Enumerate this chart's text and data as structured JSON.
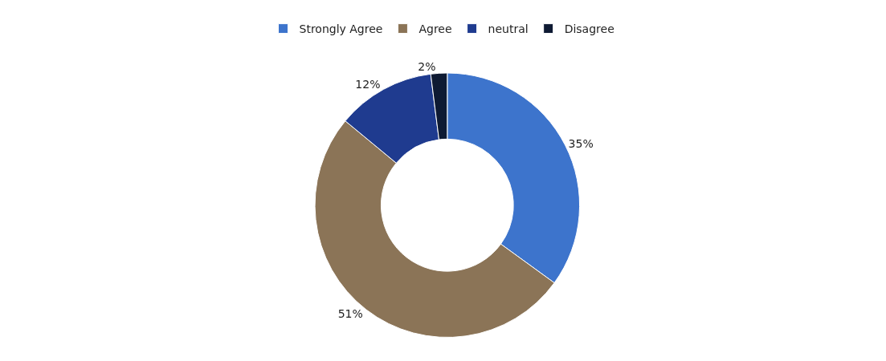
{
  "chart_data": {
    "type": "donut",
    "categories": [
      "Strongly Agree",
      "Agree",
      "neutral",
      "Disagree"
    ],
    "values": [
      35,
      51,
      12,
      2
    ],
    "colors": [
      "#3d74cc",
      "#8b7457",
      "#1f3b8f",
      "#0e1a33"
    ],
    "value_labels": [
      "35%",
      "51%",
      "12%",
      "2%"
    ],
    "legend": "top"
  }
}
